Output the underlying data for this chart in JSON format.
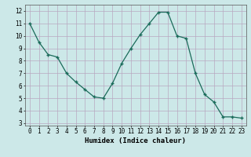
{
  "x": [
    0,
    1,
    2,
    3,
    4,
    5,
    6,
    7,
    8,
    9,
    10,
    11,
    12,
    13,
    14,
    15,
    16,
    17,
    18,
    19,
    20,
    21,
    22,
    23
  ],
  "y": [
    11,
    9.5,
    8.5,
    8.3,
    7.0,
    6.3,
    5.7,
    5.1,
    5.0,
    6.2,
    7.8,
    9.0,
    10.1,
    11.0,
    11.9,
    11.9,
    10.0,
    9.8,
    7.0,
    5.3,
    4.7,
    3.5,
    3.5,
    3.4
  ],
  "line_color": "#1a6b5a",
  "marker": "+",
  "marker_size": 3,
  "linewidth": 0.9,
  "bg_color": "#cce8e8",
  "grid_color": "#b8a8c0",
  "xlabel": "Humidex (Indice chaleur)",
  "xlabel_fontsize": 6.5,
  "tick_fontsize": 5.5,
  "xlim": [
    -0.5,
    23.5
  ],
  "ylim": [
    2.8,
    12.5
  ],
  "yticks": [
    3,
    4,
    5,
    6,
    7,
    8,
    9,
    10,
    11,
    12
  ],
  "xticks": [
    0,
    1,
    2,
    3,
    4,
    5,
    6,
    7,
    8,
    9,
    10,
    11,
    12,
    13,
    14,
    15,
    16,
    17,
    18,
    19,
    20,
    21,
    22,
    23
  ]
}
